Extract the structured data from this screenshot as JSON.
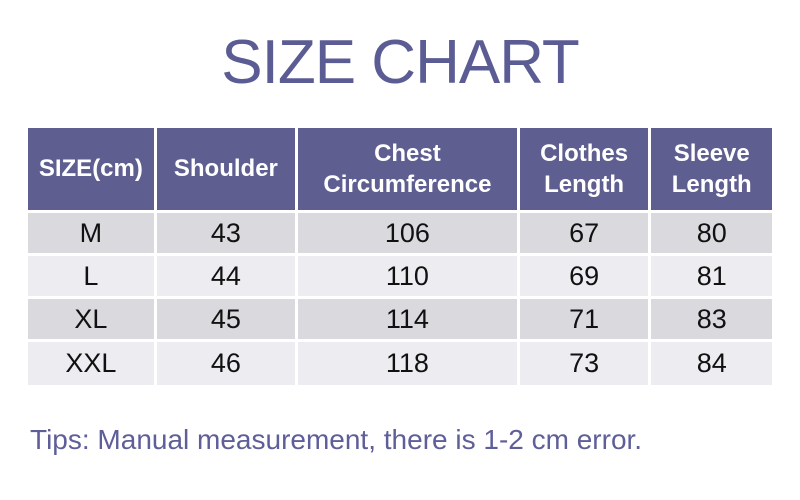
{
  "title": "SIZE CHART",
  "table": {
    "columns": [
      "SIZE(cm)",
      "Shoulder",
      "Chest Circumference",
      "Clothes Length",
      "Sleeve Length"
    ],
    "rows": [
      [
        "M",
        "43",
        "106",
        "67",
        "80"
      ],
      [
        "L",
        "44",
        "110",
        "69",
        "81"
      ],
      [
        "XL",
        "45",
        "114",
        "71",
        "83"
      ],
      [
        "XXL",
        "46",
        "118",
        "73",
        "84"
      ]
    ]
  },
  "tip": "Tips: Manual measurement, there is 1-2 cm error.",
  "colors": {
    "page_bg": "#ffffff",
    "title_text": "#5c5c94",
    "header_bg": "#5e5e90",
    "header_text": "#ffffff",
    "row_dark_bg": "#d9d9de",
    "row_light_bg": "#ededf1",
    "cell_text": "#111111",
    "tip_text": "#5e5e99"
  },
  "chart_data": {
    "type": "table",
    "title": "SIZE CHART",
    "unit": "cm",
    "columns": [
      "SIZE(cm)",
      "Shoulder",
      "Chest Circumference",
      "Clothes Length",
      "Sleeve Length"
    ],
    "rows": [
      {
        "size": "M",
        "shoulder": 43,
        "chest_circumference": 106,
        "clothes_length": 67,
        "sleeve_length": 80
      },
      {
        "size": "L",
        "shoulder": 44,
        "chest_circumference": 110,
        "clothes_length": 69,
        "sleeve_length": 81
      },
      {
        "size": "XL",
        "shoulder": 45,
        "chest_circumference": 114,
        "clothes_length": 71,
        "sleeve_length": 83
      },
      {
        "size": "XXL",
        "shoulder": 46,
        "chest_circumference": 118,
        "clothes_length": 73,
        "sleeve_length": 84
      }
    ],
    "note": "Tips: Manual measurement, there is 1-2 cm error."
  }
}
